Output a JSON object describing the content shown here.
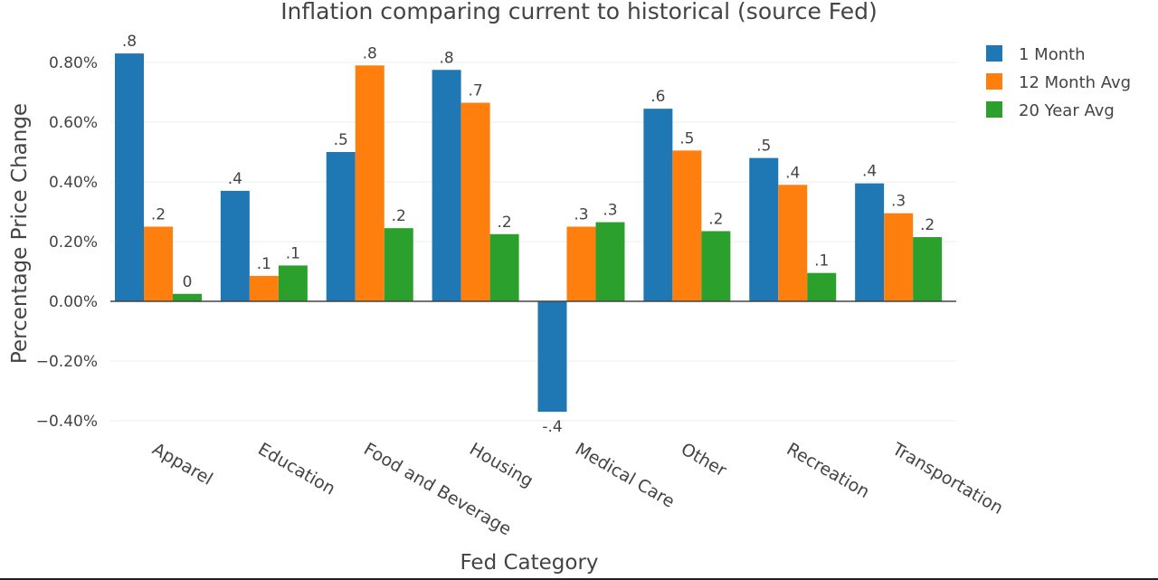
{
  "chart_data": {
    "type": "bar",
    "title": "Inflation comparing current to historical (source Fed)",
    "xlabel": "Fed Category",
    "ylabel": "Percentage Price Change",
    "categories": [
      "Apparel",
      "Education",
      "Food and Beverage",
      "Housing",
      "Medical Care",
      "Other",
      "Recreation",
      "Transportation"
    ],
    "series": [
      {
        "name": "1 Month",
        "color": "#1f77b4",
        "values": [
          0.83,
          0.37,
          0.5,
          0.775,
          -0.37,
          0.645,
          0.48,
          0.395
        ],
        "labels": [
          ".8",
          ".4",
          ".5",
          ".8",
          "-.4",
          ".6",
          ".5",
          ".4"
        ]
      },
      {
        "name": "12 Month Avg",
        "color": "#ff7f0e",
        "values": [
          0.25,
          0.085,
          0.79,
          0.665,
          0.25,
          0.505,
          0.39,
          0.295
        ],
        "labels": [
          ".2",
          ".1",
          ".8",
          ".7",
          ".3",
          ".5",
          ".4",
          ".3"
        ]
      },
      {
        "name": "20 Year Avg",
        "color": "#2ca02c",
        "values": [
          0.025,
          0.12,
          0.245,
          0.225,
          0.265,
          0.235,
          0.095,
          0.215
        ],
        "labels": [
          "0",
          ".1",
          ".2",
          ".2",
          ".3",
          ".2",
          ".1",
          ".2"
        ]
      }
    ],
    "ylim": [
      -0.4,
      0.84
    ],
    "yticks": [
      -0.4,
      -0.2,
      0,
      0.2,
      0.4,
      0.6,
      0.8
    ],
    "ytick_labels": [
      "−0.40%",
      "−0.20%",
      "0.00%",
      "0.20%",
      "0.40%",
      "0.60%",
      "0.80%"
    ],
    "grid": true,
    "legend_position": "top-right"
  }
}
